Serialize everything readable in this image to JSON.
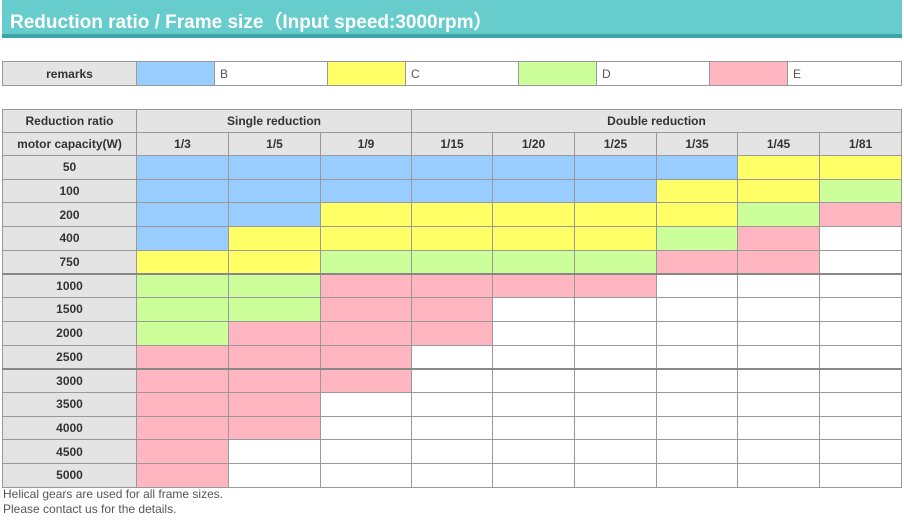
{
  "page": {
    "title": "Reduction ratio / Frame size（Input speed:3000rpm）"
  },
  "colors": {
    "B": "#99ccff",
    "C": "#ffff66",
    "D": "#ccff99",
    "E": "#ffb6c1",
    "none": "#ffffff"
  },
  "remarks": {
    "label": "remarks",
    "items": [
      {
        "code": "B",
        "label": "B"
      },
      {
        "code": "C",
        "label": "C"
      },
      {
        "code": "D",
        "label": "D"
      },
      {
        "code": "E",
        "label": "E"
      }
    ]
  },
  "table": {
    "corner_top": "Reduction ratio",
    "corner_bottom": "motor capacity(W)",
    "group_single": "Single reduction",
    "group_double": "Double reduction",
    "ratios": [
      "1/3",
      "1/5",
      "1/9",
      "1/15",
      "1/20",
      "1/25",
      "1/35",
      "1/45",
      "1/81"
    ],
    "rows": [
      {
        "capacity": "50",
        "cells": [
          "B",
          "B",
          "B",
          "B",
          "B",
          "B",
          "B",
          "C",
          "C"
        ]
      },
      {
        "capacity": "100",
        "cells": [
          "B",
          "B",
          "B",
          "B",
          "B",
          "B",
          "C",
          "C",
          "D"
        ]
      },
      {
        "capacity": "200",
        "cells": [
          "B",
          "B",
          "C",
          "C",
          "C",
          "C",
          "C",
          "D",
          "E"
        ]
      },
      {
        "capacity": "400",
        "cells": [
          "B",
          "C",
          "C",
          "C",
          "C",
          "C",
          "D",
          "E",
          ""
        ]
      },
      {
        "capacity": "750",
        "cells": [
          "C",
          "C",
          "D",
          "D",
          "D",
          "D",
          "E",
          "E",
          ""
        ]
      },
      {
        "capacity": "1000",
        "cells": [
          "D",
          "D",
          "E",
          "E",
          "E",
          "E",
          "",
          "",
          ""
        ]
      },
      {
        "capacity": "1500",
        "cells": [
          "D",
          "D",
          "E",
          "E",
          "",
          "",
          "",
          "",
          ""
        ]
      },
      {
        "capacity": "2000",
        "cells": [
          "D",
          "E",
          "E",
          "E",
          "",
          "",
          "",
          "",
          ""
        ]
      },
      {
        "capacity": "2500",
        "cells": [
          "E",
          "E",
          "E",
          "",
          "",
          "",
          "",
          "",
          ""
        ]
      },
      {
        "capacity": "3000",
        "cells": [
          "E",
          "E",
          "E",
          "",
          "",
          "",
          "",
          "",
          ""
        ]
      },
      {
        "capacity": "3500",
        "cells": [
          "E",
          "E",
          "",
          "",
          "",
          "",
          "",
          "",
          ""
        ]
      },
      {
        "capacity": "4000",
        "cells": [
          "E",
          "E",
          "",
          "",
          "",
          "",
          "",
          "",
          ""
        ]
      },
      {
        "capacity": "4500",
        "cells": [
          "E",
          "",
          "",
          "",
          "",
          "",
          "",
          "",
          ""
        ]
      },
      {
        "capacity": "5000",
        "cells": [
          "E",
          "",
          "",
          "",
          "",
          "",
          "",
          "",
          ""
        ]
      }
    ]
  },
  "footer": {
    "line1": "Helical gears are used for all frame sizes.",
    "line2": "Please contact us for the details."
  }
}
